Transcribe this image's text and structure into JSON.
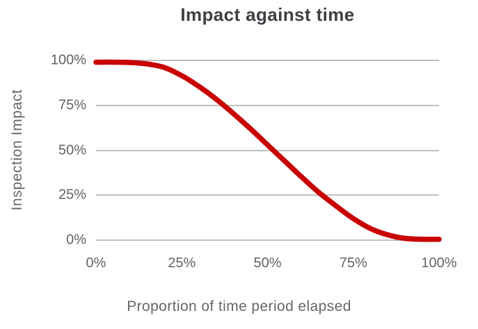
{
  "chart_data": {
    "type": "line",
    "title": "Impact against time",
    "xlabel": "Proportion of time period elapsed",
    "ylabel": "Inspection Impact",
    "xlim": [
      0,
      100
    ],
    "ylim": [
      0,
      100
    ],
    "grid": "horizontal-only",
    "legend": "none",
    "x_ticks": {
      "labels": [
        "0%",
        "25%",
        "50%",
        "75%",
        "100%"
      ],
      "values": [
        0,
        25,
        50,
        75,
        100
      ]
    },
    "y_ticks": {
      "labels": [
        "100%",
        "75%",
        "50%",
        "25%",
        "0%"
      ],
      "values": [
        100,
        75,
        50,
        25,
        0
      ]
    },
    "series": [
      {
        "name": "Inspection Impact",
        "shape": "reverse-sigmoid decline from 100% to 0%",
        "x": [
          0,
          5,
          10,
          15,
          20,
          25,
          30,
          35,
          40,
          45,
          50,
          55,
          60,
          65,
          70,
          75,
          80,
          85,
          90,
          95,
          100
        ],
        "y": [
          99,
          99,
          98.8,
          98,
          96,
          91.5,
          85.5,
          78.5,
          70.5,
          62,
          53,
          44,
          35,
          26.5,
          19,
          12,
          6.5,
          3,
          1,
          0.5,
          0.5
        ]
      }
    ]
  },
  "colors": {
    "line": "#c80000",
    "grid": "#bfbfbf",
    "tick_text": "#5e6368",
    "axis_label_text": "#63676b",
    "title_text": "#3d4045",
    "background": "#ffffff"
  },
  "style": {
    "line_width": 7.5
  }
}
